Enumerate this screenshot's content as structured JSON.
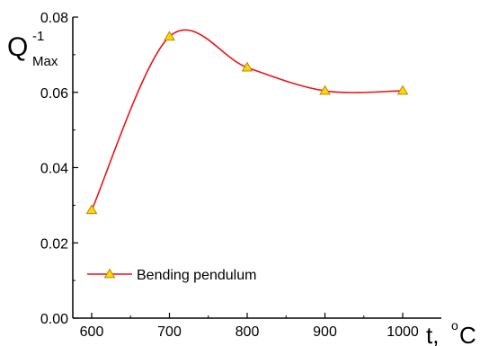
{
  "chart_data": {
    "type": "line",
    "xlabel": "t, °C",
    "xlabel_main": "t,",
    "xlabel_unit_sup": "o",
    "xlabel_unit": "C",
    "ylabel_main": "Q",
    "ylabel_sup": "-1",
    "ylabel_sub": "Max",
    "xlim": [
      600,
      1000
    ],
    "ylim": [
      0,
      0.08
    ],
    "x_ticks": [
      600,
      700,
      800,
      900,
      1000
    ],
    "x_tick_labels": [
      "600",
      "700",
      "800",
      "900",
      "1000"
    ],
    "y_ticks": [
      0,
      0.02,
      0.04,
      0.06,
      0.08
    ],
    "y_tick_labels": [
      "0.00",
      "0.02",
      "0.04",
      "0.06",
      "0.08"
    ],
    "grid": false,
    "legend_position": "bottom-left",
    "series": [
      {
        "name": "Bending pendulum",
        "x": [
          600,
          700,
          800,
          900,
          1000
        ],
        "y": [
          0.0287,
          0.0748,
          0.0666,
          0.0604,
          0.0604
        ],
        "color": "#e8141b",
        "marker": "triangle",
        "marker_fill": "#ffd700",
        "marker_edge": "#b8860b"
      }
    ]
  }
}
